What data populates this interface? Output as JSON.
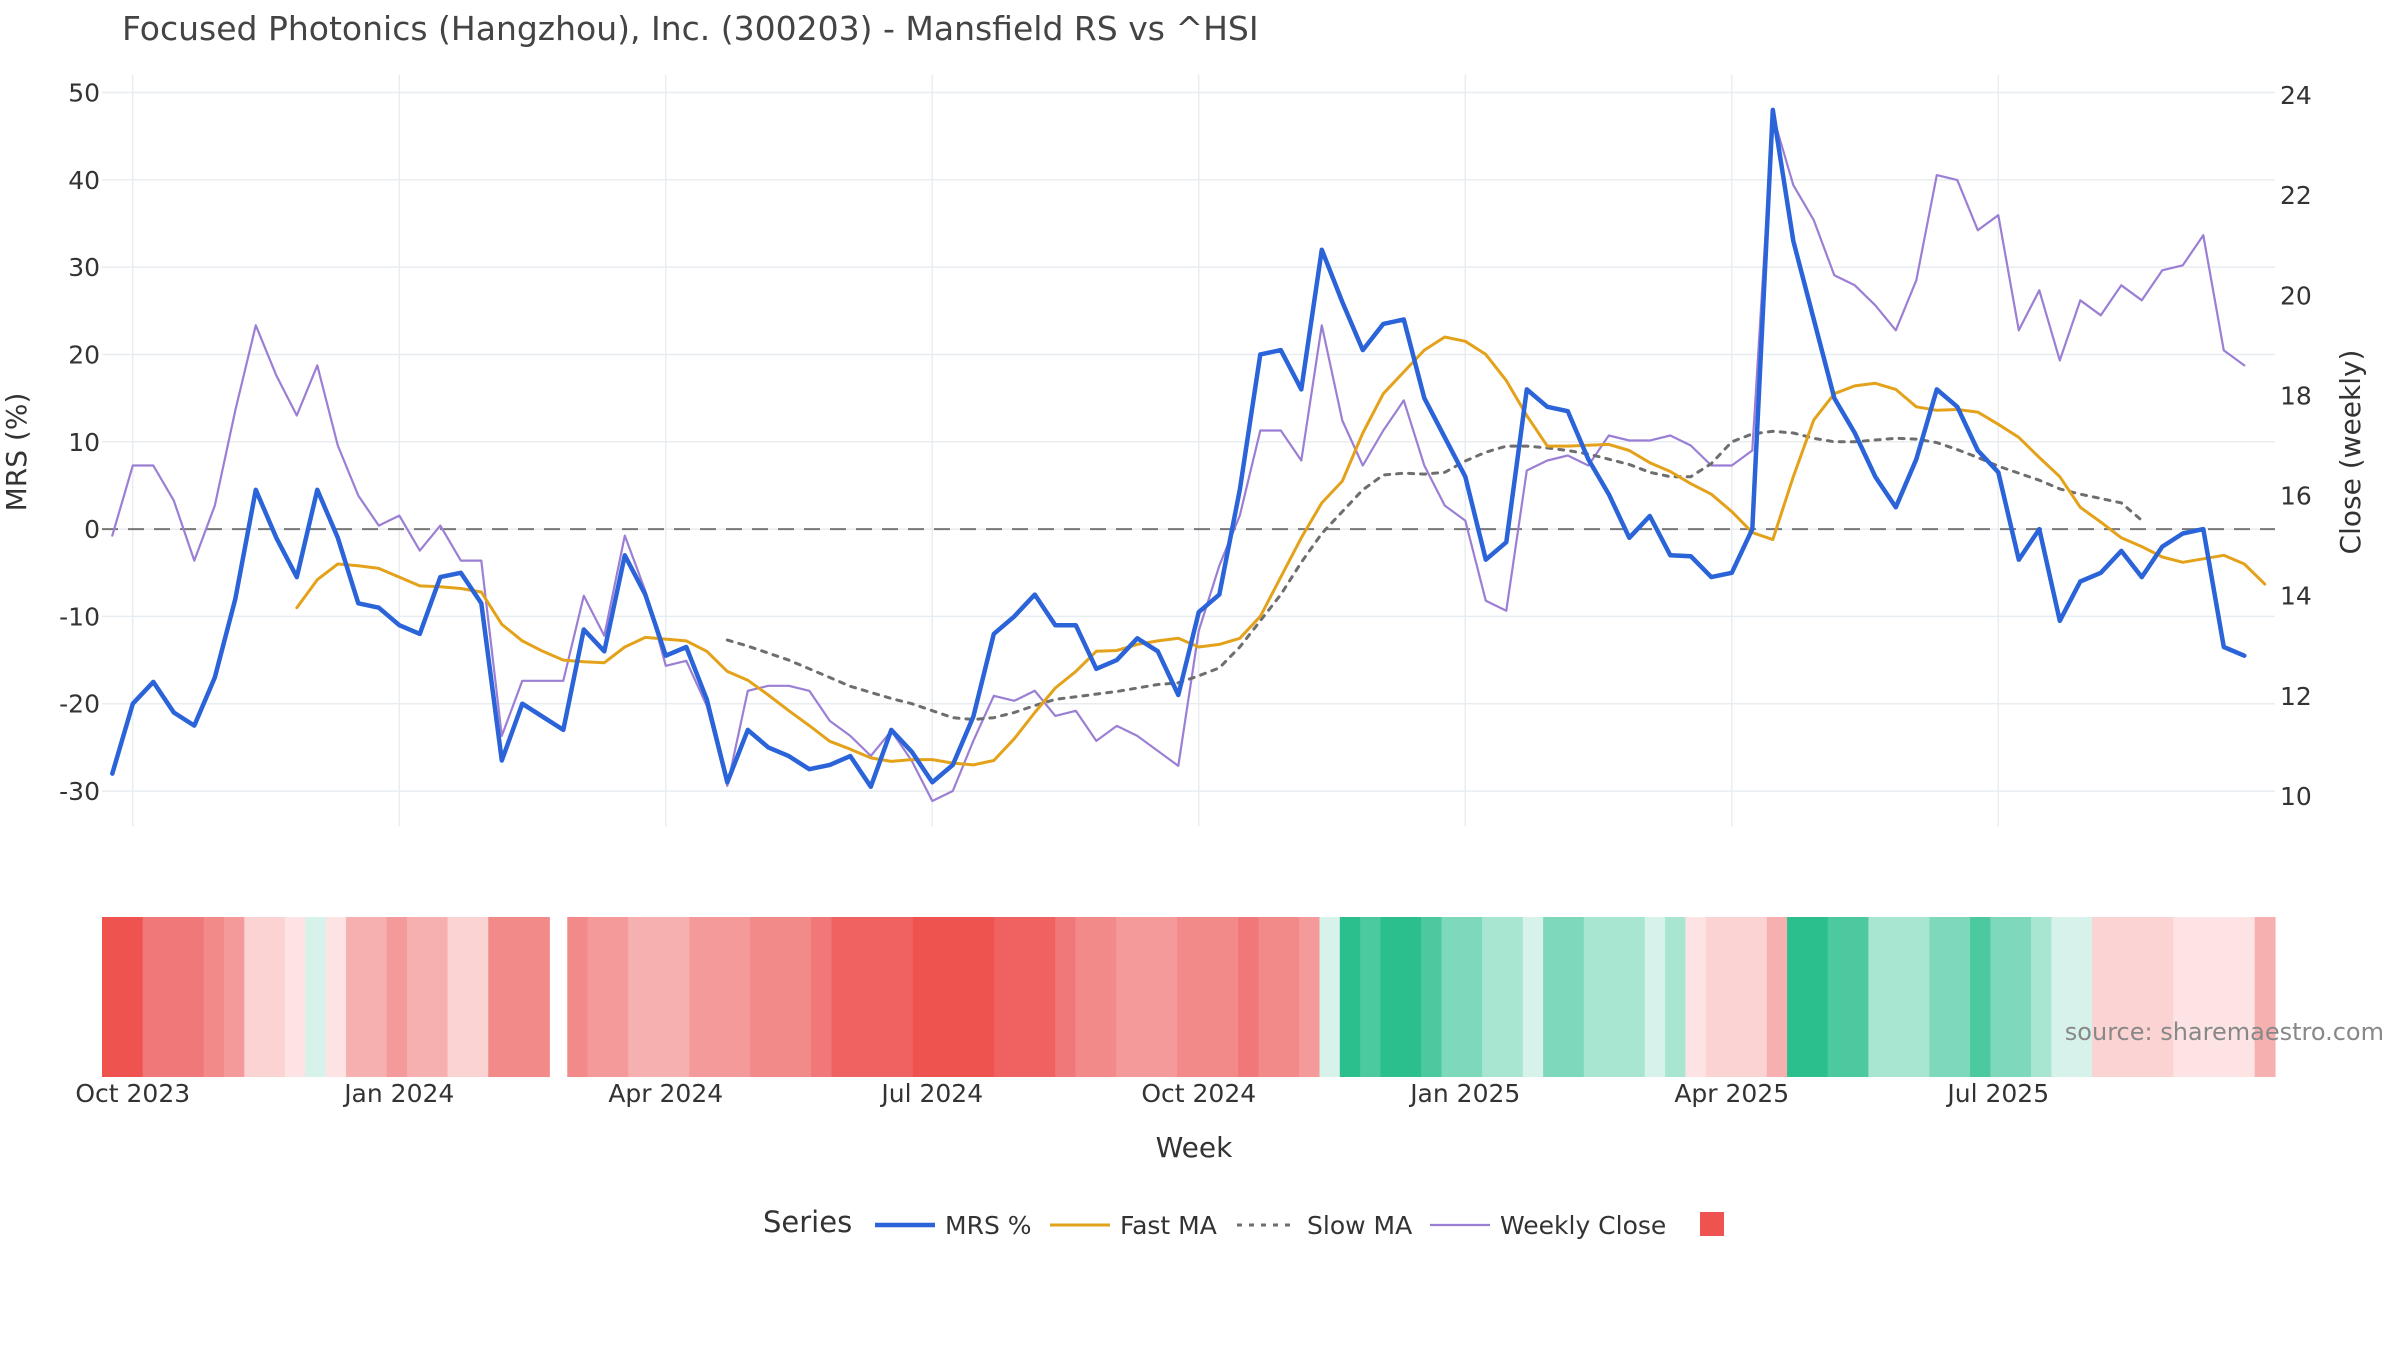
{
  "chart_data": {
    "type": "line",
    "title": "Focused Photonics (Hangzhou), Inc. (300203) - Mansfield RS vs ^HSI",
    "xlabel": "Week",
    "ylabel": "MRS (%)",
    "y2label": "Close (weekly)",
    "ylim": [
      -34,
      52
    ],
    "y2lim": [
      9.4,
      24.4
    ],
    "y_ticks": [
      50,
      40,
      30,
      20,
      10,
      0,
      -10,
      -20,
      -30
    ],
    "y2_ticks": [
      24,
      22,
      20,
      18,
      16,
      14,
      12,
      10
    ],
    "x_tick_labels": [
      {
        "label": "Oct 2023",
        "week": 1
      },
      {
        "label": "Jan 2024",
        "week": 14
      },
      {
        "label": "Apr 2024",
        "week": 27
      },
      {
        "label": "Jul 2024",
        "week": 40
      },
      {
        "label": "Oct 2024",
        "week": 53
      },
      {
        "label": "Jan 2025",
        "week": 66
      },
      {
        "label": "Apr 2025",
        "week": 79
      },
      {
        "label": "Jul 2025",
        "week": 92
      }
    ],
    "num_weeks": 106,
    "zero_line": 0,
    "series": [
      {
        "name": "MRS %",
        "color": "#2b63d9",
        "axis": "y",
        "values": [
          -28,
          -20,
          -17.5,
          -21,
          -22.5,
          -17,
          -8,
          4.5,
          -1,
          -5.5,
          4.5,
          -1,
          -8.5,
          -9,
          -11,
          -12,
          -5.5,
          -5,
          -8.5,
          -26.5,
          -20,
          -21.5,
          -23,
          -11.5,
          -14,
          -3,
          -7.5,
          -14.5,
          -13.5,
          -19.5,
          -29,
          -23,
          -25,
          -26,
          -27.5,
          -27,
          -26,
          -29.5,
          -23,
          -25.5,
          -29,
          -27,
          -21.5,
          -12,
          -10,
          -7.5,
          -11,
          -11,
          -16,
          -15,
          -12.5,
          -14,
          -19,
          -9.5,
          -7.5,
          4.5,
          20,
          20.5,
          16,
          32,
          26,
          20.5,
          23.5,
          24,
          15,
          10.5,
          6,
          -3.5,
          -1.5,
          16,
          14,
          13.5,
          8,
          4,
          -1,
          1.5,
          -3,
          -3.1,
          -5.5,
          -5,
          0,
          48,
          33,
          24,
          15,
          11,
          6,
          2.5,
          8,
          16,
          14,
          9,
          6.5,
          -3.5,
          0,
          -10.5,
          -6,
          -5,
          -2.5,
          -5.5,
          -2,
          -0.5,
          0,
          -13.5,
          -14.5
        ],
        "dash": "solid"
      },
      {
        "name": "Fast MA",
        "color": "#e3a21a",
        "axis": "y",
        "start_week": 9,
        "values": [
          -9,
          -5.8,
          -4,
          -4.2,
          -4.5,
          -5.5,
          -6.5,
          -6.6,
          -6.8,
          -7.2,
          -10.9,
          -12.8,
          -14,
          -15,
          -15.2,
          -15.3,
          -13.5,
          -12.4,
          -12.6,
          -12.8,
          -14,
          -16.3,
          -17.3,
          -19,
          -20.8,
          -22.5,
          -24.3,
          -25.2,
          -26.2,
          -26.6,
          -26.4,
          -26.4,
          -26.8,
          -27,
          -26.5,
          -24,
          -21,
          -18.2,
          -16.3,
          -14,
          -13.9,
          -13.2,
          -12.8,
          -12.5,
          -13.5,
          -13.2,
          -12.5,
          -10,
          -5.5,
          -1,
          3,
          5.5,
          11,
          15.5,
          18,
          20.5,
          22,
          21.5,
          20,
          17,
          13,
          9.5,
          9.5,
          9.6,
          9.7,
          9,
          7.6,
          6.6,
          5.2,
          4,
          2,
          -0.4,
          -1.2,
          6,
          12.5,
          15.5,
          16.4,
          16.7,
          16,
          14,
          13.6,
          13.7,
          13.4,
          12,
          10.5,
          8.2,
          6,
          2.5,
          0.8,
          -1,
          -2,
          -3.2,
          -3.8,
          -3.4,
          -3,
          -4,
          -6.3
        ]
      },
      {
        "name": "Slow MA",
        "color": "#6e6e6e",
        "axis": "y",
        "dash": "dotted",
        "start_week": 30,
        "values": [
          -12.7,
          -13.4,
          -14.2,
          -15,
          -16,
          -17,
          -18,
          -18.7,
          -19.4,
          -20,
          -20.8,
          -21.6,
          -21.8,
          -21.6,
          -21,
          -20.2,
          -19.5,
          -19.2,
          -18.9,
          -18.6,
          -18.2,
          -17.8,
          -17.6,
          -16.8,
          -15.9,
          -13.5,
          -10.5,
          -7.5,
          -3.8,
          -0.5,
          2,
          4.5,
          6.2,
          6.4,
          6.3,
          6.5,
          7.8,
          8.8,
          9.5,
          9.5,
          9.3,
          9,
          8.6,
          8,
          7.4,
          6.5,
          6,
          6,
          7.5,
          10,
          10.9,
          11.2,
          11,
          10.4,
          10,
          10,
          10.2,
          10.4,
          10.3,
          9.9,
          9.1,
          8.2,
          7.2,
          6.4,
          5.6,
          4.6,
          4,
          3.5,
          3,
          1
        ]
      },
      {
        "name": "Weekly Close",
        "color": "#9b7fd4",
        "axis": "y2",
        "values": [
          15.2,
          16.6,
          16.6,
          15.9,
          14.7,
          15.8,
          17.7,
          19.4,
          18.4,
          17.6,
          18.6,
          17,
          16,
          15.4,
          15.6,
          14.9,
          15.4,
          14.7,
          14.7,
          11.2,
          12.3,
          12.3,
          12.3,
          14,
          13.2,
          15.2,
          14.1,
          12.6,
          12.7,
          11.8,
          10.2,
          12.1,
          12.2,
          12.2,
          12.1,
          11.5,
          11.2,
          10.8,
          11.3,
          10.7,
          9.9,
          10.1,
          11.1,
          12,
          11.9,
          12.1,
          11.6,
          11.7,
          11.1,
          11.4,
          11.2,
          10.9,
          10.6,
          13.3,
          14.6,
          15.6,
          17.3,
          17.3,
          16.7,
          19.4,
          17.5,
          16.6,
          17.3,
          17.9,
          16.6,
          15.8,
          15.5,
          13.9,
          13.7,
          16.5,
          16.7,
          16.8,
          16.6,
          17.2,
          17.1,
          17.1,
          17.2,
          17,
          16.6,
          16.6,
          16.9,
          23.6,
          22.2,
          21.5,
          20.4,
          20.2,
          19.8,
          19.3,
          20.3,
          22.4,
          22.3,
          21.3,
          21.6,
          19.3,
          20.1,
          18.7,
          19.9,
          19.6,
          20.2,
          19.9,
          20.5,
          20.6,
          21.2,
          18.9,
          18.6
        ]
      }
    ],
    "regime_strip": {
      "gap_after_week": 21,
      "colors": [
        "#ef5350",
        "#f06262",
        "#f07878",
        "#f28a8a",
        "#f49a9a",
        "#f7b0b0",
        "#fbd3d3",
        "#fde3e3",
        "#d6f2ea",
        "#a8e6d2",
        "#7ed8bb",
        "#4cc99e",
        "#2bbf8d",
        "#f5a9a9",
        "#f9c4c4"
      ],
      "cells": [
        0,
        0,
        2,
        2,
        2,
        3,
        4,
        6,
        6,
        7,
        8,
        7,
        5,
        5,
        4,
        5,
        5,
        6,
        6,
        3,
        3,
        3,
        3,
        4,
        4,
        5,
        5,
        5,
        4,
        4,
        4,
        3,
        3,
        3,
        2,
        1,
        1,
        1,
        1,
        0,
        0,
        0,
        0,
        1,
        1,
        1,
        2,
        3,
        3,
        4,
        4,
        4,
        3,
        3,
        3,
        2,
        3,
        3,
        4,
        8,
        12,
        11,
        12,
        12,
        11,
        10,
        10,
        9,
        9,
        8,
        10,
        10,
        9,
        9,
        9,
        8,
        9,
        7,
        6,
        6,
        6,
        5,
        12,
        12,
        11,
        11,
        9,
        9,
        9,
        10,
        10,
        11,
        10,
        10,
        9,
        8,
        8,
        6,
        6,
        6,
        6,
        7,
        7,
        7,
        7,
        5
      ],
      "markers": []
    },
    "legend": {
      "title": "Series",
      "position": "bottom-center",
      "items": [
        {
          "label": "MRS %",
          "color": "#2b63d9",
          "style": "line-thick"
        },
        {
          "label": "Fast MA",
          "color": "#e3a21a",
          "style": "line"
        },
        {
          "label": "Slow MA",
          "color": "#6e6e6e",
          "style": "dotted"
        },
        {
          "label": "Weekly Close",
          "color": "#9b7fd4",
          "style": "line-thin"
        },
        {
          "label": "",
          "color": "#ef5350",
          "style": "square"
        }
      ]
    },
    "annotation": "source: sharemaestro.com"
  }
}
